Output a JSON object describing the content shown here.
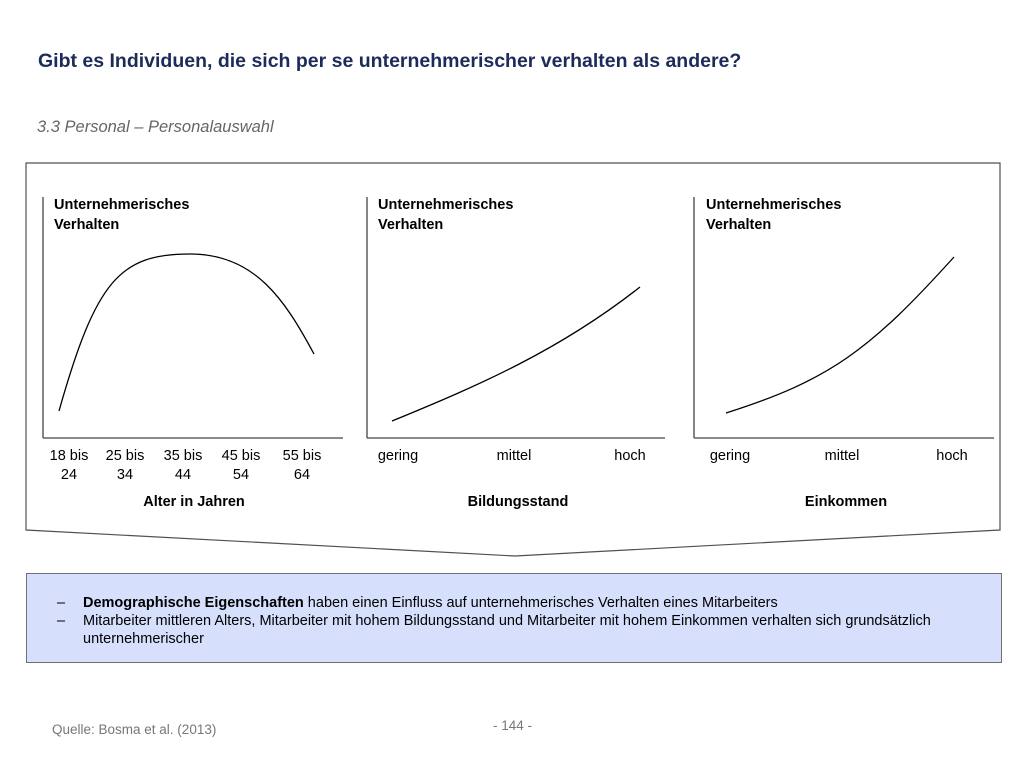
{
  "title": "Gibt es Individuen, die sich per se unternehmerischer verhalten als andere?",
  "subtitle": "3.3 Personal – Personalauswahl",
  "charts": [
    {
      "ylabel_line1": "Unternehmerisches",
      "ylabel_line2": "Verhalten",
      "ticks": [
        {
          "line1": "18 bis",
          "line2": "24"
        },
        {
          "line1": "25 bis",
          "line2": "34"
        },
        {
          "line1": "35 bis",
          "line2": "44"
        },
        {
          "line1": "45 bis",
          "line2": "54"
        },
        {
          "line1": "55 bis",
          "line2": "64"
        }
      ],
      "xlabel": "Alter in Jahren"
    },
    {
      "ylabel_line1": "Unternehmerisches",
      "ylabel_line2": "Verhalten",
      "ticks": [
        {
          "line1": "gering"
        },
        {
          "line1": "mittel"
        },
        {
          "line1": "hoch"
        }
      ],
      "xlabel": "Bildungsstand"
    },
    {
      "ylabel_line1": "Unternehmerisches",
      "ylabel_line2": "Verhalten",
      "ticks": [
        {
          "line1": "gering"
        },
        {
          "line1": "mittel"
        },
        {
          "line1": "hoch"
        }
      ],
      "xlabel": "Einkommen"
    }
  ],
  "summary": {
    "bullets": [
      {
        "dash": "–",
        "bold": "Demographische Eigenschaften",
        "rest": " haben einen Einfluss auf unternehmerisches Verhalten eines Mitarbeiters"
      },
      {
        "dash": "–",
        "bold": "",
        "rest": "Mitarbeiter mittleren Alters, Mitarbeiter mit hohem Bildungsstand und Mitarbeiter mit hohem Einkommen verhalten sich grundsätzlich unternehmerischer"
      }
    ]
  },
  "footer": {
    "source": "Quelle: Bosma et al. (2013)",
    "page": "- 144 -"
  }
}
